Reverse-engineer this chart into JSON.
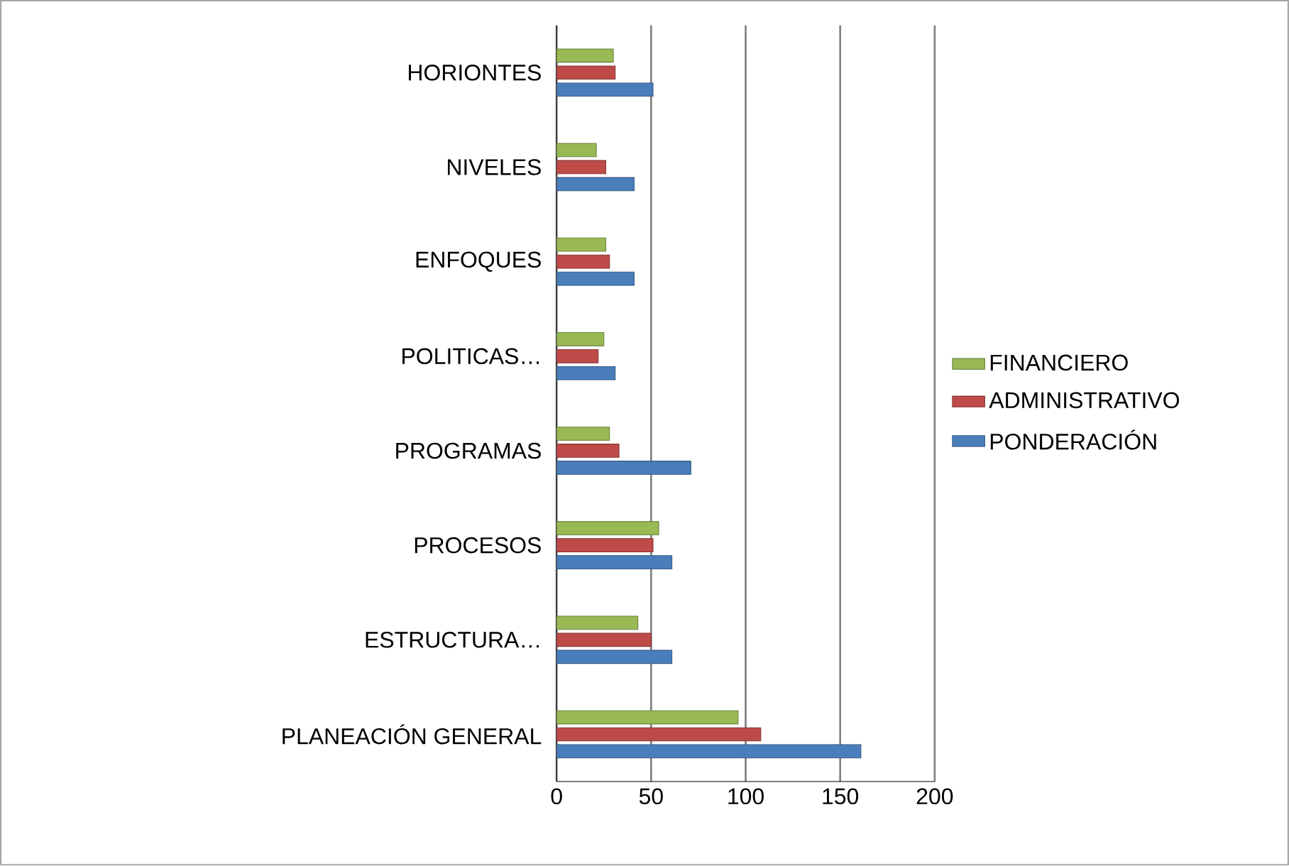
{
  "chart_data": {
    "type": "bar",
    "orientation": "horizontal",
    "categories": [
      "HORIONTES",
      "NIVELES",
      "ENFOQUES",
      "POLITICAS…",
      "PROGRAMAS",
      "PROCESOS",
      "ESTRUCTURA…",
      "PLANEACIÓN GENERAL"
    ],
    "series": [
      {
        "name": "PONDERACIÓN",
        "color": "#4a7ebb",
        "values": [
          51,
          41,
          41,
          31,
          71,
          61,
          61,
          161
        ]
      },
      {
        "name": "ADMINISTRATIVO",
        "color": "#be4b48",
        "values": [
          31,
          26,
          28,
          22,
          33,
          51,
          50,
          108
        ]
      },
      {
        "name": "FINANCIERO",
        "color": "#98b954",
        "values": [
          30,
          21,
          26,
          25,
          28,
          54,
          43,
          96
        ]
      }
    ],
    "xlim": [
      0,
      200
    ],
    "xticks": [
      0,
      50,
      100,
      150,
      200
    ],
    "grid": "x",
    "legend": "right"
  }
}
